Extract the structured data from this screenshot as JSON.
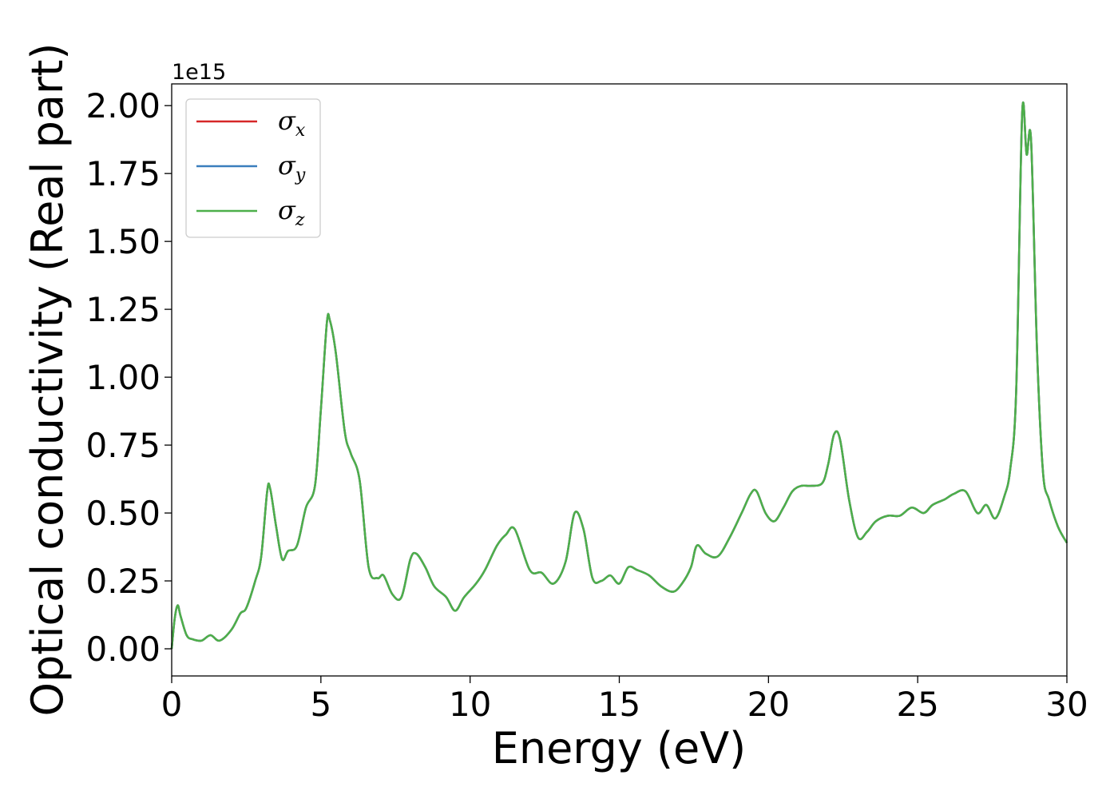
{
  "chart_data": {
    "type": "line",
    "title": "",
    "xlabel": "Energy (eV)",
    "ylabel": "Optical conductivity (Real part)",
    "y_offset_label": "1e15",
    "xlim": [
      0,
      30
    ],
    "ylim": [
      -0.1,
      2.08
    ],
    "x_ticks": [
      0,
      5,
      10,
      15,
      20,
      25,
      30
    ],
    "x_tick_labels": [
      "0",
      "5",
      "10",
      "15",
      "20",
      "25",
      "30"
    ],
    "y_ticks": [
      0.0,
      0.25,
      0.5,
      0.75,
      1.0,
      1.25,
      1.5,
      1.75,
      2.0
    ],
    "y_tick_labels": [
      "0.00",
      "0.25",
      "0.50",
      "0.75",
      "1.00",
      "1.25",
      "1.50",
      "1.75",
      "2.00"
    ],
    "grid": false,
    "legend_position": "top-left",
    "series": [
      {
        "name": "σx",
        "symbol": "σ",
        "subscript": "x",
        "color": "#d62728"
      },
      {
        "name": "σy",
        "symbol": "σ",
        "subscript": "y",
        "color": "#3a7ebd"
      },
      {
        "name": "σz",
        "symbol": "σ",
        "subscript": "z",
        "color": "#4daf4a"
      }
    ],
    "x": [
      0,
      0.1,
      0.2,
      0.3,
      0.5,
      0.7,
      1.0,
      1.3,
      1.6,
      2.0,
      2.3,
      2.5,
      2.8,
      3.0,
      3.2,
      3.3,
      3.5,
      3.7,
      3.9,
      4.2,
      4.5,
      4.8,
      5.0,
      5.2,
      5.3,
      5.5,
      5.8,
      6.0,
      6.3,
      6.6,
      6.9,
      7.1,
      7.4,
      7.7,
      8.0,
      8.2,
      8.5,
      8.8,
      9.2,
      9.5,
      9.8,
      10.2,
      10.5,
      10.9,
      11.2,
      11.5,
      12.0,
      12.4,
      12.8,
      13.2,
      13.5,
      13.8,
      14.1,
      14.4,
      14.7,
      15.0,
      15.3,
      15.6,
      16.0,
      16.4,
      16.8,
      17.1,
      17.4,
      17.6,
      17.9,
      18.3,
      18.7,
      19.1,
      19.4,
      19.6,
      19.9,
      20.2,
      20.5,
      20.8,
      21.1,
      21.4,
      21.8,
      22.0,
      22.2,
      22.4,
      22.7,
      23.0,
      23.3,
      23.6,
      24.0,
      24.4,
      24.8,
      25.2,
      25.5,
      25.9,
      26.2,
      26.6,
      27.0,
      27.3,
      27.6,
      27.9,
      28.1,
      28.3,
      28.5,
      28.65,
      28.8,
      29.0,
      29.2,
      29.4,
      29.7,
      30.0
    ],
    "y": [
      0.0,
      0.11,
      0.16,
      0.12,
      0.05,
      0.035,
      0.03,
      0.05,
      0.03,
      0.07,
      0.13,
      0.15,
      0.25,
      0.34,
      0.58,
      0.59,
      0.45,
      0.33,
      0.36,
      0.38,
      0.52,
      0.6,
      0.88,
      1.2,
      1.21,
      1.09,
      0.8,
      0.72,
      0.62,
      0.3,
      0.26,
      0.27,
      0.2,
      0.19,
      0.33,
      0.35,
      0.3,
      0.23,
      0.19,
      0.14,
      0.19,
      0.24,
      0.29,
      0.38,
      0.42,
      0.44,
      0.29,
      0.28,
      0.24,
      0.32,
      0.5,
      0.44,
      0.26,
      0.25,
      0.27,
      0.24,
      0.3,
      0.29,
      0.27,
      0.23,
      0.21,
      0.24,
      0.3,
      0.38,
      0.35,
      0.34,
      0.41,
      0.5,
      0.57,
      0.58,
      0.5,
      0.47,
      0.52,
      0.58,
      0.6,
      0.6,
      0.61,
      0.68,
      0.79,
      0.77,
      0.55,
      0.41,
      0.43,
      0.47,
      0.49,
      0.49,
      0.52,
      0.5,
      0.53,
      0.55,
      0.57,
      0.58,
      0.5,
      0.53,
      0.48,
      0.56,
      0.66,
      0.95,
      1.97,
      1.82,
      1.87,
      1.1,
      0.65,
      0.55,
      0.45,
      0.39
    ]
  }
}
